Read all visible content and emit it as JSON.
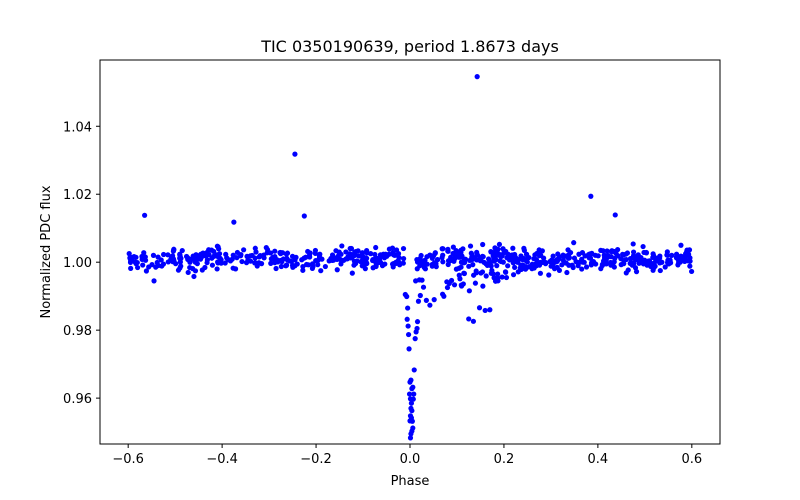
{
  "chart_data": {
    "type": "scatter",
    "title": "TIC 0350190639, period 1.8673 days",
    "xlabel": "Phase",
    "ylabel": "Normalized PDC flux",
    "xlim": [
      -0.66,
      0.66
    ],
    "ylim": [
      0.9465,
      1.0595
    ],
    "x_ticks": [
      -0.6,
      -0.4,
      -0.2,
      0.0,
      0.2,
      0.4,
      0.6
    ],
    "x_tick_labels": [
      "−0.6",
      "−0.4",
      "−0.2",
      "0.0",
      "0.2",
      "0.4",
      "0.6"
    ],
    "y_ticks": [
      0.96,
      0.98,
      1.0,
      1.02,
      1.04
    ],
    "y_tick_labels": [
      "0.96",
      "0.98",
      "1.00",
      "1.02",
      "1.04"
    ],
    "grid": false,
    "marker_color": "#0000ff",
    "series": [
      {
        "name": "flux",
        "points": [
          [
            -0.565,
            1.0138
          ],
          [
            -0.375,
            1.0118
          ],
          [
            -0.245,
            1.0318
          ],
          [
            -0.225,
            1.0136
          ],
          [
            0.143,
            1.0546
          ],
          [
            0.385,
            1.0194
          ],
          [
            0.437,
            1.0139
          ],
          [
            -0.545,
            0.9945
          ],
          [
            -0.46,
            0.9958
          ],
          [
            -0.19,
            0.9975
          ],
          [
            0.125,
            0.9833
          ],
          [
            0.135,
            0.9826
          ],
          [
            0.148,
            0.9866
          ],
          [
            0.16,
            0.9858
          ],
          [
            0.17,
            0.986
          ],
          [
            0.012,
            0.9945
          ],
          [
            0.018,
            0.9885
          ],
          [
            0.022,
            0.9902
          ],
          [
            0.02,
            0.9948
          ],
          [
            -0.01,
            0.9905
          ],
          [
            -0.007,
            0.9899
          ],
          [
            -0.005,
            0.9865
          ],
          [
            -0.006,
            0.9832
          ],
          [
            -0.004,
            0.9812
          ],
          [
            -0.003,
            0.9787
          ],
          [
            -0.002,
            0.9745
          ],
          [
            0.016,
            0.9825
          ],
          [
            0.015,
            0.9805
          ],
          [
            0.013,
            0.9795
          ],
          [
            0.011,
            0.9775
          ],
          [
            0.009,
            0.9683
          ],
          [
            0.006,
            0.9632
          ],
          [
            0.004,
            0.9628
          ],
          [
            0.008,
            0.9612
          ],
          [
            0.007,
            0.9597
          ],
          [
            0.002,
            0.9653
          ],
          [
            -0.0,
            0.9647
          ],
          [
            -0.001,
            0.9612
          ],
          [
            0.001,
            0.9598
          ],
          [
            0.003,
            0.9585
          ],
          [
            0.002,
            0.957
          ],
          [
            0.004,
            0.9563
          ],
          [
            0.001,
            0.9548
          ],
          [
            0.003,
            0.9542
          ],
          [
            0.0,
            0.9533
          ],
          [
            0.005,
            0.9532
          ],
          [
            0.006,
            0.9512
          ],
          [
            0.004,
            0.9503
          ],
          [
            0.002,
            0.9495
          ],
          [
            0.001,
            0.9483
          ]
        ],
        "baseline": {
          "x_start": -0.6,
          "x_end": 0.6,
          "count": 700,
          "center": 1.001,
          "spread": 0.0055,
          "transit_gap": [
            -0.012,
            0.014
          ],
          "egress_trail": {
            "x_start": 0.02,
            "x_end": 0.32,
            "min_flux": 0.986
          }
        }
      }
    ]
  }
}
